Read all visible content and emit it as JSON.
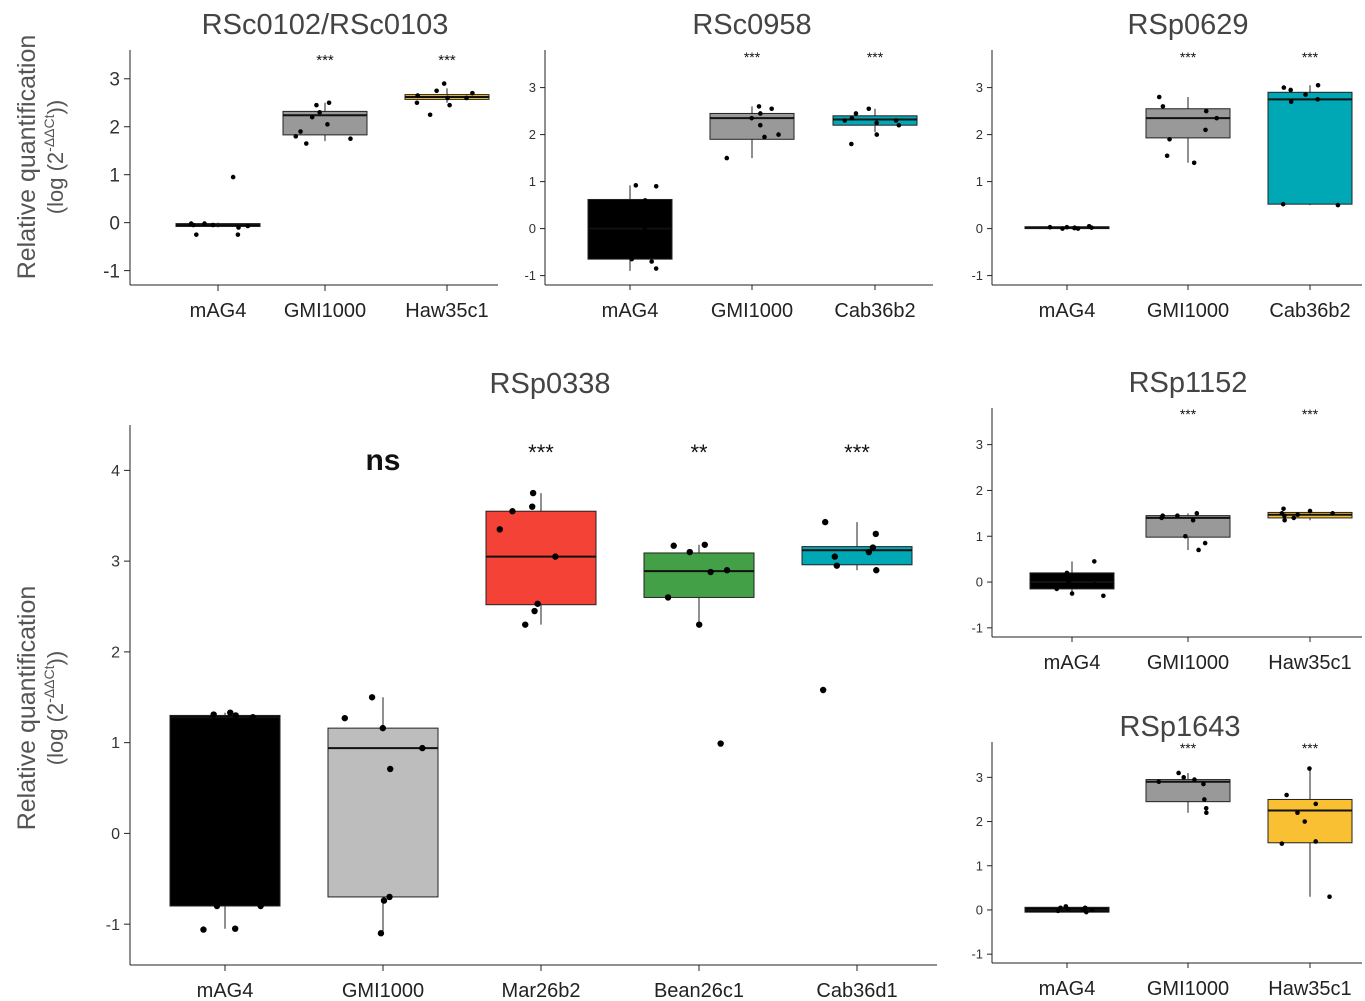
{
  "ylabel": {
    "main": "Relative quantification",
    "formula_prefix": "(log (2",
    "formula_exp": "-ΔΔCt",
    "formula_suffix": "))"
  },
  "chart_data": [
    {
      "type": "box",
      "title": "RSc0102/RSc0103",
      "xlabel": "",
      "ylabel": "Relative quantification (log (2-ΔΔCt))",
      "ylim": [
        -1.3,
        3.6
      ],
      "yticks": [
        -1,
        0,
        1,
        2,
        3
      ],
      "grid": false,
      "categories": [
        "mAG4",
        "GMI1000",
        "Haw35c1"
      ],
      "colors": [
        "#000000",
        "#999999",
        "#F9C033"
      ],
      "significance": [
        "",
        "***",
        "***"
      ],
      "boxes": [
        {
          "min": -0.1,
          "q1": -0.08,
          "median": -0.04,
          "q3": -0.02,
          "max": 0.0
        },
        {
          "min": 1.7,
          "q1": 1.83,
          "median": 2.24,
          "q3": 2.32,
          "max": 2.5
        },
        {
          "min": 2.5,
          "q1": 2.57,
          "median": 2.62,
          "q3": 2.67,
          "max": 2.8
        }
      ],
      "points": [
        [
          0.95,
          -0.02,
          -0.05,
          -0.1,
          -0.25,
          -0.25,
          -0.05,
          -0.07,
          -0.02
        ],
        [
          2.5,
          2.45,
          2.2,
          2.05,
          1.9,
          1.8,
          1.75,
          1.65,
          2.3
        ],
        [
          2.9,
          2.75,
          2.7,
          2.65,
          2.6,
          2.5,
          2.45,
          2.25,
          2.6
        ]
      ]
    },
    {
      "type": "box",
      "title": "RSc0958",
      "xlabel": "",
      "ylabel": "",
      "ylim": [
        -1.2,
        3.8
      ],
      "yticks": [
        -1,
        0,
        1,
        2,
        3
      ],
      "grid": false,
      "categories": [
        "mAG4",
        "GMI1000",
        "Cab36b2"
      ],
      "colors": [
        "#000000",
        "#999999",
        "#00A7B5"
      ],
      "significance": [
        "",
        "***",
        "***"
      ],
      "boxes": [
        {
          "min": -0.9,
          "q1": -0.65,
          "median": 0.0,
          "q3": 0.62,
          "max": 0.92
        },
        {
          "min": 1.5,
          "q1": 1.9,
          "median": 2.35,
          "q3": 2.45,
          "max": 2.6
        },
        {
          "min": 2.05,
          "q1": 2.2,
          "median": 2.32,
          "q3": 2.4,
          "max": 2.55
        }
      ],
      "points": [
        [
          0.92,
          0.9,
          0.6,
          0.0,
          -0.65,
          -0.7,
          -0.85
        ],
        [
          2.6,
          2.55,
          2.45,
          2.2,
          2.0,
          1.95,
          1.5,
          2.35
        ],
        [
          2.55,
          2.45,
          2.35,
          2.3,
          2.25,
          2.2,
          2.0,
          1.8,
          2.3
        ]
      ]
    },
    {
      "type": "box",
      "title": "RSp0629",
      "xlabel": "",
      "ylabel": "",
      "ylim": [
        -1.2,
        3.8
      ],
      "yticks": [
        -1,
        0,
        1,
        2,
        3
      ],
      "grid": false,
      "categories": [
        "mAG4",
        "GMI1000",
        "Cab36b2"
      ],
      "colors": [
        "#000000",
        "#999999",
        "#00A7B5"
      ],
      "significance": [
        "",
        "***",
        "***"
      ],
      "boxes": [
        {
          "min": 0.0,
          "q1": 0.0,
          "median": 0.02,
          "q3": 0.04,
          "max": 0.05
        },
        {
          "min": 1.4,
          "q1": 1.93,
          "median": 2.35,
          "q3": 2.55,
          "max": 2.8
        },
        {
          "min": 0.5,
          "q1": 0.52,
          "median": 2.75,
          "q3": 2.9,
          "max": 3.05
        }
      ],
      "points": [
        [
          0.05,
          0.03,
          0.02,
          0.0,
          0.01,
          0.02,
          0.0,
          0.03
        ],
        [
          2.8,
          2.6,
          2.5,
          2.35,
          2.1,
          1.9,
          1.55,
          1.4
        ],
        [
          3.05,
          3.0,
          2.95,
          2.85,
          2.75,
          2.7,
          0.52,
          0.5
        ]
      ]
    },
    {
      "type": "box",
      "title": "RSp0338",
      "xlabel": "",
      "ylabel": "Relative quantification (log (2-ΔΔCt))",
      "ylim": [
        -1.45,
        4.5
      ],
      "yticks": [
        -1,
        0,
        1,
        2,
        3,
        4
      ],
      "grid": false,
      "categories": [
        "mAG4",
        "GMI1000",
        "Mar26b2",
        "Bean26c1",
        "Cab36d1"
      ],
      "colors": [
        "#000000",
        "#BDBDBD",
        "#F44336",
        "#43A047",
        "#00A7B5"
      ],
      "significance": [
        "",
        "ns",
        "***",
        "**",
        "***"
      ],
      "boxes": [
        {
          "min": -1.05,
          "q1": -0.8,
          "median": 1.28,
          "q3": 1.3,
          "max": 1.33
        },
        {
          "min": -1.1,
          "q1": -0.7,
          "median": 0.94,
          "q3": 1.16,
          "max": 1.5
        },
        {
          "min": 2.3,
          "q1": 2.52,
          "median": 3.05,
          "q3": 3.55,
          "max": 3.75
        },
        {
          "min": 2.3,
          "q1": 2.6,
          "median": 2.89,
          "q3": 3.09,
          "max": 3.18
        },
        {
          "min": 2.9,
          "q1": 2.96,
          "median": 3.12,
          "q3": 3.16,
          "max": 3.43
        }
      ],
      "points": [
        [
          1.33,
          1.3,
          1.28,
          -0.8,
          -0.8,
          -1.05,
          -1.06,
          1.31
        ],
        [
          1.5,
          1.27,
          1.16,
          0.94,
          0.71,
          -0.7,
          -0.74,
          -1.1
        ],
        [
          3.75,
          3.6,
          3.55,
          3.35,
          3.05,
          2.53,
          2.45,
          2.3
        ],
        [
          3.18,
          3.17,
          3.1,
          2.9,
          2.88,
          2.6,
          2.3,
          0.99
        ],
        [
          3.43,
          3.3,
          3.15,
          3.1,
          3.05,
          2.95,
          2.9,
          1.58
        ]
      ]
    },
    {
      "type": "box",
      "title": "RSp1152",
      "xlabel": "",
      "ylabel": "",
      "ylim": [
        -1.2,
        3.8
      ],
      "yticks": [
        -1,
        0,
        1,
        2,
        3
      ],
      "grid": false,
      "categories": [
        "mAG4",
        "GMI1000",
        "Haw35c1"
      ],
      "colors": [
        "#000000",
        "#999999",
        "#F9C033"
      ],
      "significance": [
        "",
        "***",
        "***"
      ],
      "boxes": [
        {
          "min": -0.3,
          "q1": -0.15,
          "median": 0.0,
          "q3": 0.2,
          "max": 0.45
        },
        {
          "min": 0.7,
          "q1": 0.98,
          "median": 1.4,
          "q3": 1.45,
          "max": 1.5
        },
        {
          "min": 1.35,
          "q1": 1.4,
          "median": 1.47,
          "q3": 1.52,
          "max": 1.6
        }
      ],
      "points": [
        [
          0.45,
          0.2,
          0.1,
          0.0,
          -0.05,
          -0.15,
          -0.25,
          -0.3
        ],
        [
          1.5,
          1.45,
          1.4,
          1.35,
          1.0,
          0.85,
          0.7,
          1.45
        ],
        [
          1.6,
          1.55,
          1.5,
          1.47,
          1.45,
          1.4,
          1.35,
          1.5
        ]
      ]
    },
    {
      "type": "box",
      "title": "RSp1643",
      "xlabel": "",
      "ylabel": "",
      "ylim": [
        -1.2,
        3.8
      ],
      "yticks": [
        -1,
        0,
        1,
        2,
        3
      ],
      "grid": false,
      "categories": [
        "mAG4",
        "GMI1000",
        "Haw35c1"
      ],
      "colors": [
        "#000000",
        "#999999",
        "#F9C033"
      ],
      "significance": [
        "",
        "***",
        "***"
      ],
      "boxes": [
        {
          "min": -0.05,
          "q1": -0.05,
          "median": 0.0,
          "q3": 0.06,
          "max": 0.1
        },
        {
          "min": 2.2,
          "q1": 2.45,
          "median": 2.9,
          "q3": 2.95,
          "max": 3.1
        },
        {
          "min": 0.3,
          "q1": 1.52,
          "median": 2.25,
          "q3": 2.5,
          "max": 3.2
        }
      ],
      "points": [
        [
          0.08,
          0.05,
          0.02,
          0.0,
          -0.02,
          -0.05,
          0.05,
          0.0
        ],
        [
          3.1,
          3.0,
          2.95,
          2.9,
          2.85,
          2.5,
          2.3,
          2.2
        ],
        [
          3.2,
          2.6,
          2.4,
          2.2,
          2.0,
          1.55,
          1.5,
          0.3
        ]
      ]
    }
  ]
}
